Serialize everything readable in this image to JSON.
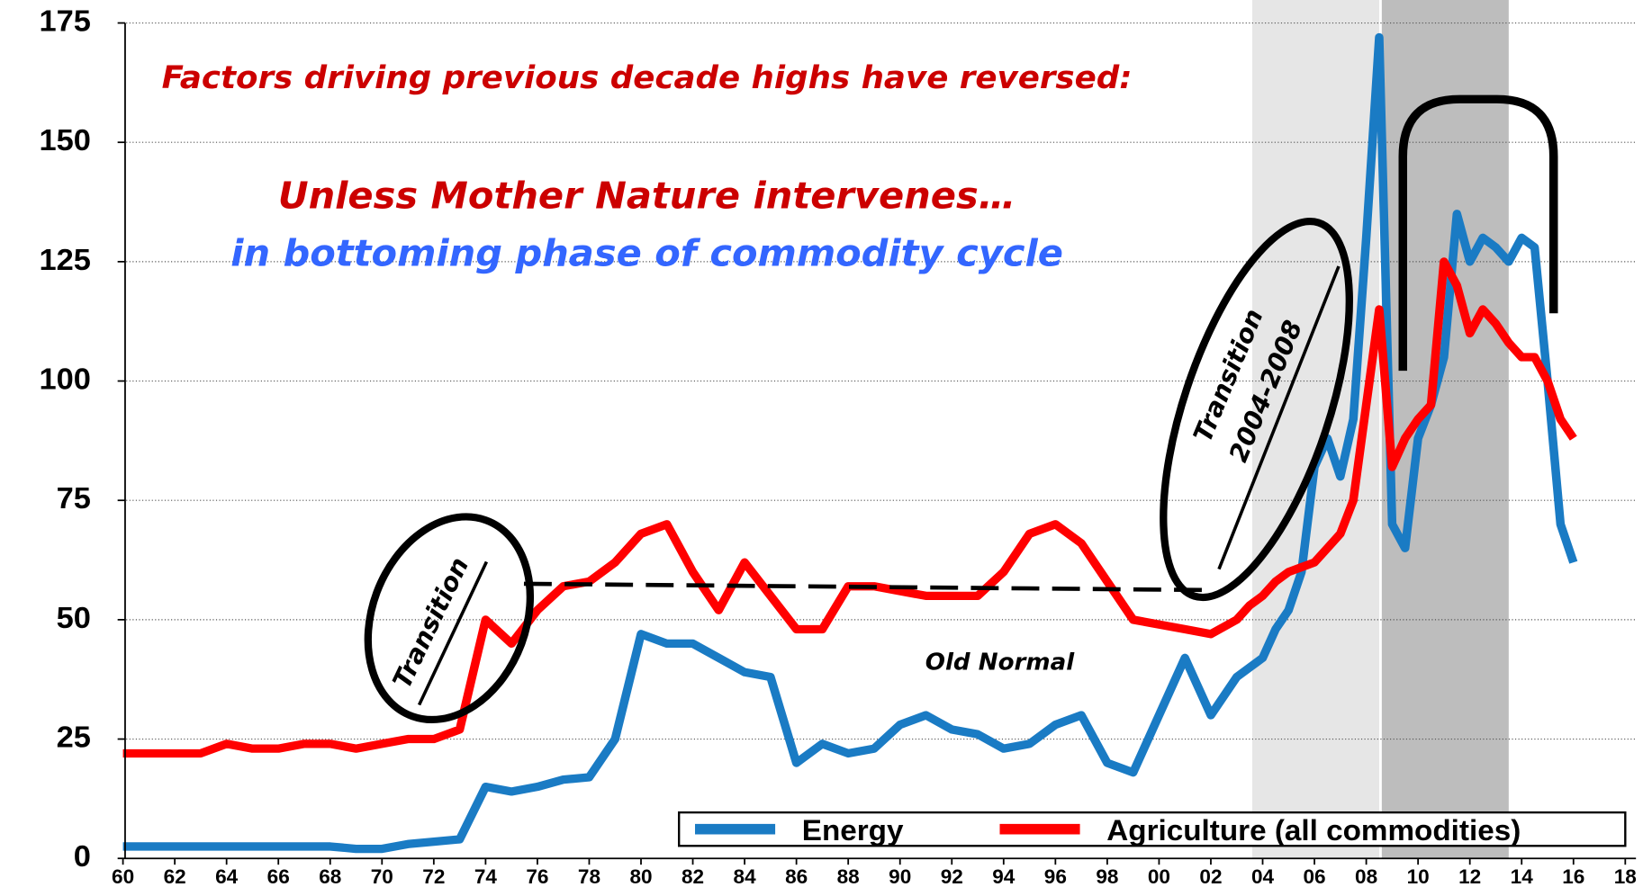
{
  "chart_data": {
    "type": "line",
    "annotations": [
      "Factors driving previous decade highs have reversed:",
      "Unless Mother Nature intervenes…",
      "in bottoming phase of commodity cycle",
      "Transition",
      "Transition",
      "2004-2008",
      "Old Normal"
    ],
    "x": [
      1960,
      1961,
      1962,
      1963,
      1964,
      1965,
      1966,
      1967,
      1968,
      1969,
      1970,
      1971,
      1972,
      1973,
      1974,
      1975,
      1976,
      1977,
      1978,
      1979,
      1980,
      1981,
      1982,
      1983,
      1984,
      1985,
      1986,
      1987,
      1988,
      1989,
      1990,
      1991,
      1992,
      1993,
      1994,
      1995,
      1996,
      1997,
      1998,
      1999,
      2000,
      2001,
      2002,
      2003,
      2003.5,
      2004,
      2004.5,
      2005,
      2005.5,
      2006,
      2006.5,
      2007,
      2007.5,
      2008,
      2008.5,
      2009,
      2009.5,
      2010,
      2010.5,
      2011,
      2011.5,
      2012,
      2012.5,
      2013,
      2013.5,
      2014,
      2014.5,
      2015,
      2015.5,
      2016
    ],
    "series": [
      {
        "name": "Energy",
        "color": "#1a7bc4",
        "values": [
          2.5,
          2.5,
          2.5,
          2.5,
          2.5,
          2.5,
          2.5,
          2.5,
          2.5,
          2,
          2,
          3,
          3.5,
          4,
          15,
          14,
          15,
          16.5,
          17,
          25,
          47,
          45,
          45,
          42,
          39,
          38,
          20,
          24,
          22,
          23,
          28,
          30,
          27,
          26,
          23,
          24,
          28,
          30,
          20,
          18,
          30,
          42,
          30,
          38,
          40,
          42,
          48,
          52,
          60,
          82,
          88,
          80,
          92,
          130,
          172,
          70,
          65,
          88,
          95,
          105,
          135,
          125,
          130,
          128,
          125,
          130,
          128,
          100,
          70,
          62
        ]
      },
      {
        "name": "Agriculture (all commodities)",
        "color": "#ff0000",
        "values": [
          22,
          22,
          22,
          22,
          24,
          23,
          23,
          24,
          24,
          23,
          24,
          25,
          25,
          27,
          50,
          45,
          52,
          57,
          58,
          62,
          68,
          70,
          60,
          52,
          62,
          55,
          48,
          48,
          57,
          57,
          56,
          55,
          55,
          55,
          60,
          68,
          70,
          66,
          58,
          50,
          49,
          48,
          47,
          50,
          53,
          55,
          58,
          60,
          61,
          62,
          65,
          68,
          75,
          95,
          115,
          82,
          88,
          92,
          95,
          125,
          120,
          110,
          115,
          112,
          108,
          105,
          105,
          100,
          92,
          88
        ]
      }
    ],
    "shaded_periods": [
      {
        "start": 2003.6,
        "end": 2008.5,
        "color": "#e6e6e6"
      },
      {
        "start": 2008.6,
        "end": 2013.5,
        "color": "#bdbdbd"
      }
    ],
    "xlim": [
      1960,
      2018
    ],
    "xticks": [
      {
        "value": 1960,
        "label": "60"
      },
      {
        "value": 1962,
        "label": "62"
      },
      {
        "value": 1964,
        "label": "64"
      },
      {
        "value": 1966,
        "label": "66"
      },
      {
        "value": 1968,
        "label": "68"
      },
      {
        "value": 1970,
        "label": "70"
      },
      {
        "value": 1972,
        "label": "72"
      },
      {
        "value": 1974,
        "label": "74"
      },
      {
        "value": 1976,
        "label": "76"
      },
      {
        "value": 1978,
        "label": "78"
      },
      {
        "value": 1980,
        "label": "80"
      },
      {
        "value": 1982,
        "label": "82"
      },
      {
        "value": 1984,
        "label": "84"
      },
      {
        "value": 1986,
        "label": "86"
      },
      {
        "value": 1988,
        "label": "88"
      },
      {
        "value": 1990,
        "label": "90"
      },
      {
        "value": 1992,
        "label": "92"
      },
      {
        "value": 1994,
        "label": "94"
      },
      {
        "value": 1996,
        "label": "96"
      },
      {
        "value": 1998,
        "label": "98"
      },
      {
        "value": 2000,
        "label": "00"
      },
      {
        "value": 2002,
        "label": "02"
      },
      {
        "value": 2004,
        "label": "04"
      },
      {
        "value": 2006,
        "label": "06"
      },
      {
        "value": 2008,
        "label": "08"
      },
      {
        "value": 2010,
        "label": "10"
      },
      {
        "value": 2012,
        "label": "12"
      },
      {
        "value": 2014,
        "label": "14"
      },
      {
        "value": 2016,
        "label": "16"
      },
      {
        "value": 2018,
        "label": "18"
      }
    ],
    "ylim": [
      0,
      175
    ],
    "yticks": [
      0,
      25,
      50,
      75,
      100,
      125,
      150,
      175
    ],
    "grid": true
  }
}
